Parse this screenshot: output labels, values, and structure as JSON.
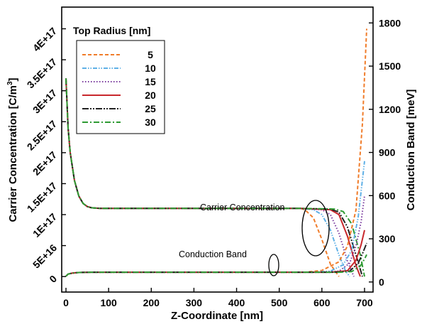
{
  "chart_data": {
    "type": "line",
    "xlabel": "Z-Coordinate [nm]",
    "ylabel_left": "Carrier Concentration [C/m³]",
    "ylabel_left_main": "Carrier Concentration [C/m",
    "ylabel_left_sup": "3",
    "ylabel_left_end": "]",
    "ylabel_right": "Conduction Band [meV]",
    "xlim": [
      -10,
      720
    ],
    "ylim_left": [
      -2.5e+16,
      4.35e+17
    ],
    "ylim_right": [
      -70,
      1910
    ],
    "x_ticks": [
      0,
      100,
      200,
      300,
      400,
      500,
      600,
      700
    ],
    "x_tick_labels": [
      "0",
      "100",
      "200",
      "300",
      "400",
      "500",
      "600",
      "700"
    ],
    "y_left_ticks": [
      0,
      5e+16,
      1e+17,
      1.5e+17,
      2e+17,
      2.5e+17,
      3e+17,
      3.5e+17,
      4e+17
    ],
    "y_left_tick_labels": [
      "0",
      "5E+16",
      "1E+17",
      "1.5E+17",
      "2E+17",
      "2.5E+17",
      "3E+17",
      "3.5E+17",
      "4E+17"
    ],
    "y_right_ticks": [
      0,
      300,
      600,
      900,
      1200,
      1500,
      1800
    ],
    "y_right_tick_labels": [
      "0",
      "300",
      "600",
      "900",
      "1200",
      "1500",
      "1800"
    ],
    "legend": {
      "title": "Top Radius [nm]",
      "placement": "top-left",
      "entries": [
        "5",
        "10",
        "15",
        "20",
        "25",
        "30"
      ]
    },
    "annotations": {
      "carrier": "Carrier Concentration",
      "band": "Conduction Band"
    },
    "carrier_concentration": {
      "axis": "left",
      "units": "C/m^3",
      "common_x": [
        0,
        5,
        10,
        20,
        30,
        40,
        50,
        60,
        80,
        100,
        200,
        300,
        400,
        500,
        550
      ],
      "common_y": [
        3.2e+17,
        2.4e+17,
        2e+17,
        1.55e+17,
        1.3e+17,
        1.18e+17,
        1.13e+17,
        1.11e+17,
        1.1e+17,
        1.1e+17,
        1.1e+17,
        1.1e+17,
        1.1e+17,
        1.1e+17,
        1.1e+17
      ],
      "tails": [
        {
          "name": "5",
          "x": [
            560,
            580,
            600,
            620,
            640
          ],
          "y": [
            1.08e+17,
            9.5e+16,
            6e+16,
            2e+16,
            0
          ]
        },
        {
          "name": "10",
          "x": [
            580,
            600,
            620,
            640,
            655,
            665
          ],
          "y": [
            1.08e+17,
            1e+17,
            7.5e+16,
            3.5e+16,
            1e+16,
            0
          ]
        },
        {
          "name": "15",
          "x": [
            600,
            620,
            640,
            660,
            675
          ],
          "y": [
            1.08e+17,
            1e+17,
            7e+16,
            2.5e+16,
            0
          ]
        },
        {
          "name": "20",
          "x": [
            620,
            640,
            660,
            680,
            690
          ],
          "y": [
            1.08e+17,
            1e+17,
            6.5e+16,
            1.8e+16,
            0
          ]
        },
        {
          "name": "25",
          "x": [
            620,
            640,
            660,
            680,
            695
          ],
          "y": [
            1.09e+17,
            1.04e+17,
            8e+16,
            3.5e+16,
            0
          ]
        },
        {
          "name": "30",
          "x": [
            630,
            650,
            670,
            690,
            700
          ],
          "y": [
            1.09e+17,
            1.05e+17,
            8.5e+16,
            3.5e+16,
            0
          ]
        }
      ]
    },
    "conduction_band": {
      "axis": "right",
      "units": "meV",
      "common_x": [
        0,
        5,
        15,
        30,
        60,
        100,
        200,
        300,
        400,
        500,
        550
      ],
      "common_y": [
        40,
        55,
        62,
        66,
        68,
        68,
        68,
        68,
        68,
        68,
        68
      ],
      "tails": [
        {
          "name": "5",
          "x": [
            560,
            600,
            640,
            660,
            680,
            695,
            705
          ],
          "y": [
            68,
            80,
            140,
            250,
            500,
            1100,
            1760
          ]
        },
        {
          "name": "10",
          "x": [
            580,
            620,
            650,
            670,
            685,
            700
          ],
          "y": [
            68,
            75,
            120,
            220,
            450,
            840
          ]
        },
        {
          "name": "15",
          "x": [
            600,
            640,
            665,
            680,
            692,
            700
          ],
          "y": [
            68,
            75,
            130,
            250,
            420,
            600
          ]
        },
        {
          "name": "20",
          "x": [
            620,
            660,
            680,
            692,
            700
          ],
          "y": [
            68,
            78,
            150,
            260,
            360
          ]
        },
        {
          "name": "25",
          "x": [
            630,
            665,
            685,
            697,
            705
          ],
          "y": [
            68,
            75,
            130,
            210,
            270
          ]
        },
        {
          "name": "30",
          "x": [
            640,
            670,
            690,
            700,
            705
          ],
          "y": [
            68,
            72,
            110,
            160,
            190
          ]
        }
      ]
    },
    "series_styles": [
      {
        "name": "5",
        "color": "#f07c2a",
        "dash": "5,3"
      },
      {
        "name": "10",
        "color": "#5fb0e6",
        "dash": "6,2,1.5,2,1.5,2"
      },
      {
        "name": "15",
        "color": "#7a3a9e",
        "dash": "1.5,2.5"
      },
      {
        "name": "20",
        "color": "#c8282c",
        "dash": ""
      },
      {
        "name": "25",
        "color": "#222222",
        "dash": "9,2,2,2,2,2"
      },
      {
        "name": "30",
        "color": "#2f9b33",
        "dash": "8,3,2,3"
      }
    ]
  }
}
